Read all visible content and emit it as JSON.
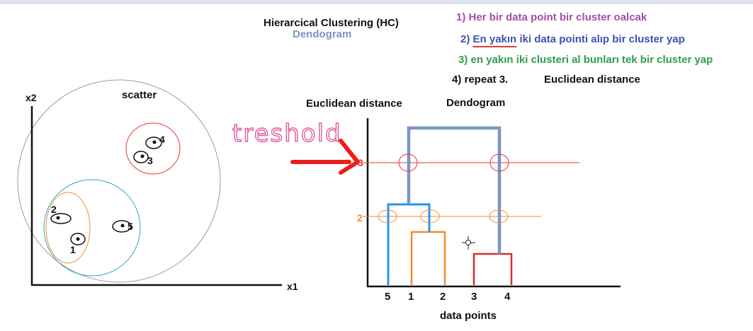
{
  "title": "Hierarcical Clustering  (HC)",
  "subtitle": "Dendogram",
  "steps": [
    {
      "text": "1) Her bir data point bir cluster oalcak",
      "color": "#a64ca6"
    },
    {
      "text_underlined": "En yakın",
      "prefix": "2) ",
      "rest": " iki data pointi alıp bir cluster yap",
      "color": "#3f51b5"
    },
    {
      "text": "3) en yakın iki clusteri al bunları tek bir cluster yap",
      "color": "#2e9e4a"
    },
    {
      "text": "4) repeat 3.",
      "color": "#111111"
    }
  ],
  "distance_note": "Euclidean distance",
  "scatter": {
    "title": "scatter",
    "xlabel": "x1",
    "ylabel": "x2",
    "points": [
      {
        "label": "1"
      },
      {
        "label": "2"
      },
      {
        "label": "3"
      },
      {
        "label": "4"
      },
      {
        "label": "5"
      }
    ]
  },
  "dendrogram": {
    "ylabel": "Euclidean distance",
    "title": "Dendogram",
    "xlabel": "data points",
    "leaf_order": [
      "5",
      "1",
      "2",
      "3",
      "4"
    ],
    "thresholds": [
      {
        "label": "3",
        "color": "#e53935"
      },
      {
        "label": "2",
        "color": "#f28c28"
      }
    ],
    "handwritten": "treshold",
    "colors": {
      "orange": "#f28c28",
      "red": "#d32f2f",
      "blue": "#2196f3",
      "steel": "#7a95c8",
      "pink": "#e05aa0"
    }
  }
}
